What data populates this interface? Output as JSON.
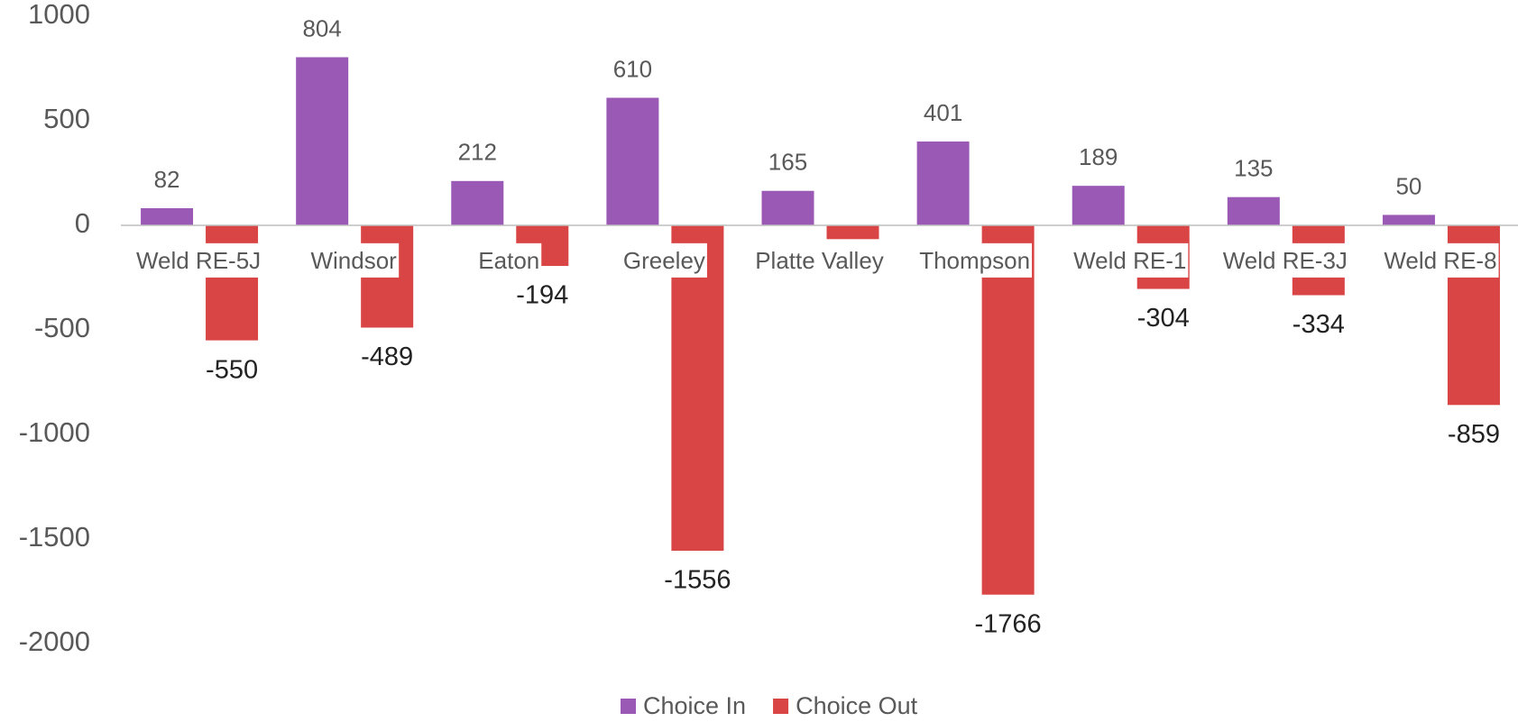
{
  "chart_data": {
    "type": "bar",
    "categories": [
      "Weld RE-5J",
      "Windsor",
      "Eaton",
      "Greeley",
      "Platte Valley",
      "Thompson",
      "Weld RE-1",
      "Weld RE-3J",
      "Weld RE-8"
    ],
    "series": [
      {
        "name": "Choice In",
        "color": "#9b59b6",
        "values": [
          82,
          804,
          212,
          610,
          165,
          401,
          189,
          135,
          50
        ]
      },
      {
        "name": "Choice Out",
        "color": "#d94444",
        "values": [
          -550,
          -489,
          -194,
          -1556,
          -66,
          -1766,
          -304,
          -334,
          -859
        ]
      }
    ],
    "ylim": [
      -2000,
      1000
    ],
    "yticks": [
      -2000,
      -1500,
      -1000,
      -500,
      0,
      500,
      1000
    ],
    "grid": false,
    "legend": "bottom"
  }
}
